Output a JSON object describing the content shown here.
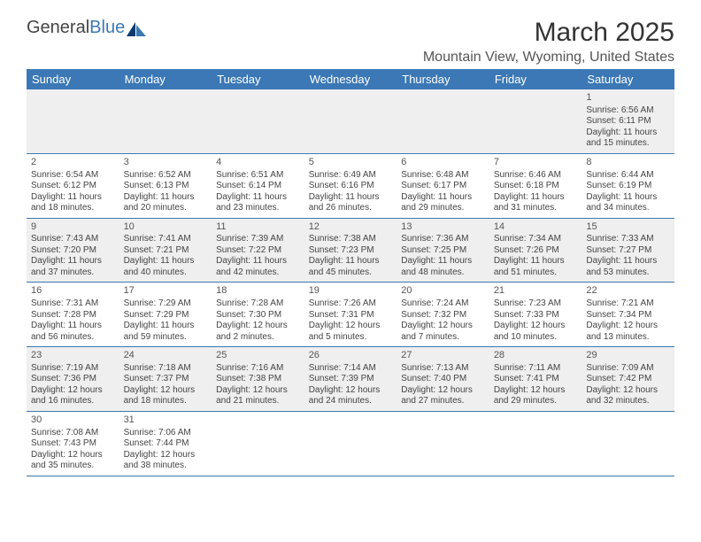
{
  "logo": {
    "part1": "General",
    "part2": "Blue"
  },
  "title": "March 2025",
  "location": "Mountain View, Wyoming, United States",
  "colors": {
    "header_bg": "#3b78b5",
    "header_text": "#ffffff",
    "row_alt_bg": "#efefef",
    "row_bg": "#ffffff",
    "divider": "#3b78b5",
    "text": "#444444"
  },
  "weekdays": [
    "Sunday",
    "Monday",
    "Tuesday",
    "Wednesday",
    "Thursday",
    "Friday",
    "Saturday"
  ],
  "weeks": [
    [
      null,
      null,
      null,
      null,
      null,
      null,
      {
        "n": "1",
        "sr": "Sunrise: 6:56 AM",
        "ss": "Sunset: 6:11 PM",
        "d1": "Daylight: 11 hours",
        "d2": "and 15 minutes."
      }
    ],
    [
      {
        "n": "2",
        "sr": "Sunrise: 6:54 AM",
        "ss": "Sunset: 6:12 PM",
        "d1": "Daylight: 11 hours",
        "d2": "and 18 minutes."
      },
      {
        "n": "3",
        "sr": "Sunrise: 6:52 AM",
        "ss": "Sunset: 6:13 PM",
        "d1": "Daylight: 11 hours",
        "d2": "and 20 minutes."
      },
      {
        "n": "4",
        "sr": "Sunrise: 6:51 AM",
        "ss": "Sunset: 6:14 PM",
        "d1": "Daylight: 11 hours",
        "d2": "and 23 minutes."
      },
      {
        "n": "5",
        "sr": "Sunrise: 6:49 AM",
        "ss": "Sunset: 6:16 PM",
        "d1": "Daylight: 11 hours",
        "d2": "and 26 minutes."
      },
      {
        "n": "6",
        "sr": "Sunrise: 6:48 AM",
        "ss": "Sunset: 6:17 PM",
        "d1": "Daylight: 11 hours",
        "d2": "and 29 minutes."
      },
      {
        "n": "7",
        "sr": "Sunrise: 6:46 AM",
        "ss": "Sunset: 6:18 PM",
        "d1": "Daylight: 11 hours",
        "d2": "and 31 minutes."
      },
      {
        "n": "8",
        "sr": "Sunrise: 6:44 AM",
        "ss": "Sunset: 6:19 PM",
        "d1": "Daylight: 11 hours",
        "d2": "and 34 minutes."
      }
    ],
    [
      {
        "n": "9",
        "sr": "Sunrise: 7:43 AM",
        "ss": "Sunset: 7:20 PM",
        "d1": "Daylight: 11 hours",
        "d2": "and 37 minutes."
      },
      {
        "n": "10",
        "sr": "Sunrise: 7:41 AM",
        "ss": "Sunset: 7:21 PM",
        "d1": "Daylight: 11 hours",
        "d2": "and 40 minutes."
      },
      {
        "n": "11",
        "sr": "Sunrise: 7:39 AM",
        "ss": "Sunset: 7:22 PM",
        "d1": "Daylight: 11 hours",
        "d2": "and 42 minutes."
      },
      {
        "n": "12",
        "sr": "Sunrise: 7:38 AM",
        "ss": "Sunset: 7:23 PM",
        "d1": "Daylight: 11 hours",
        "d2": "and 45 minutes."
      },
      {
        "n": "13",
        "sr": "Sunrise: 7:36 AM",
        "ss": "Sunset: 7:25 PM",
        "d1": "Daylight: 11 hours",
        "d2": "and 48 minutes."
      },
      {
        "n": "14",
        "sr": "Sunrise: 7:34 AM",
        "ss": "Sunset: 7:26 PM",
        "d1": "Daylight: 11 hours",
        "d2": "and 51 minutes."
      },
      {
        "n": "15",
        "sr": "Sunrise: 7:33 AM",
        "ss": "Sunset: 7:27 PM",
        "d1": "Daylight: 11 hours",
        "d2": "and 53 minutes."
      }
    ],
    [
      {
        "n": "16",
        "sr": "Sunrise: 7:31 AM",
        "ss": "Sunset: 7:28 PM",
        "d1": "Daylight: 11 hours",
        "d2": "and 56 minutes."
      },
      {
        "n": "17",
        "sr": "Sunrise: 7:29 AM",
        "ss": "Sunset: 7:29 PM",
        "d1": "Daylight: 11 hours",
        "d2": "and 59 minutes."
      },
      {
        "n": "18",
        "sr": "Sunrise: 7:28 AM",
        "ss": "Sunset: 7:30 PM",
        "d1": "Daylight: 12 hours",
        "d2": "and 2 minutes."
      },
      {
        "n": "19",
        "sr": "Sunrise: 7:26 AM",
        "ss": "Sunset: 7:31 PM",
        "d1": "Daylight: 12 hours",
        "d2": "and 5 minutes."
      },
      {
        "n": "20",
        "sr": "Sunrise: 7:24 AM",
        "ss": "Sunset: 7:32 PM",
        "d1": "Daylight: 12 hours",
        "d2": "and 7 minutes."
      },
      {
        "n": "21",
        "sr": "Sunrise: 7:23 AM",
        "ss": "Sunset: 7:33 PM",
        "d1": "Daylight: 12 hours",
        "d2": "and 10 minutes."
      },
      {
        "n": "22",
        "sr": "Sunrise: 7:21 AM",
        "ss": "Sunset: 7:34 PM",
        "d1": "Daylight: 12 hours",
        "d2": "and 13 minutes."
      }
    ],
    [
      {
        "n": "23",
        "sr": "Sunrise: 7:19 AM",
        "ss": "Sunset: 7:36 PM",
        "d1": "Daylight: 12 hours",
        "d2": "and 16 minutes."
      },
      {
        "n": "24",
        "sr": "Sunrise: 7:18 AM",
        "ss": "Sunset: 7:37 PM",
        "d1": "Daylight: 12 hours",
        "d2": "and 18 minutes."
      },
      {
        "n": "25",
        "sr": "Sunrise: 7:16 AM",
        "ss": "Sunset: 7:38 PM",
        "d1": "Daylight: 12 hours",
        "d2": "and 21 minutes."
      },
      {
        "n": "26",
        "sr": "Sunrise: 7:14 AM",
        "ss": "Sunset: 7:39 PM",
        "d1": "Daylight: 12 hours",
        "d2": "and 24 minutes."
      },
      {
        "n": "27",
        "sr": "Sunrise: 7:13 AM",
        "ss": "Sunset: 7:40 PM",
        "d1": "Daylight: 12 hours",
        "d2": "and 27 minutes."
      },
      {
        "n": "28",
        "sr": "Sunrise: 7:11 AM",
        "ss": "Sunset: 7:41 PM",
        "d1": "Daylight: 12 hours",
        "d2": "and 29 minutes."
      },
      {
        "n": "29",
        "sr": "Sunrise: 7:09 AM",
        "ss": "Sunset: 7:42 PM",
        "d1": "Daylight: 12 hours",
        "d2": "and 32 minutes."
      }
    ],
    [
      {
        "n": "30",
        "sr": "Sunrise: 7:08 AM",
        "ss": "Sunset: 7:43 PM",
        "d1": "Daylight: 12 hours",
        "d2": "and 35 minutes."
      },
      {
        "n": "31",
        "sr": "Sunrise: 7:06 AM",
        "ss": "Sunset: 7:44 PM",
        "d1": "Daylight: 12 hours",
        "d2": "and 38 minutes."
      },
      null,
      null,
      null,
      null,
      null
    ]
  ]
}
